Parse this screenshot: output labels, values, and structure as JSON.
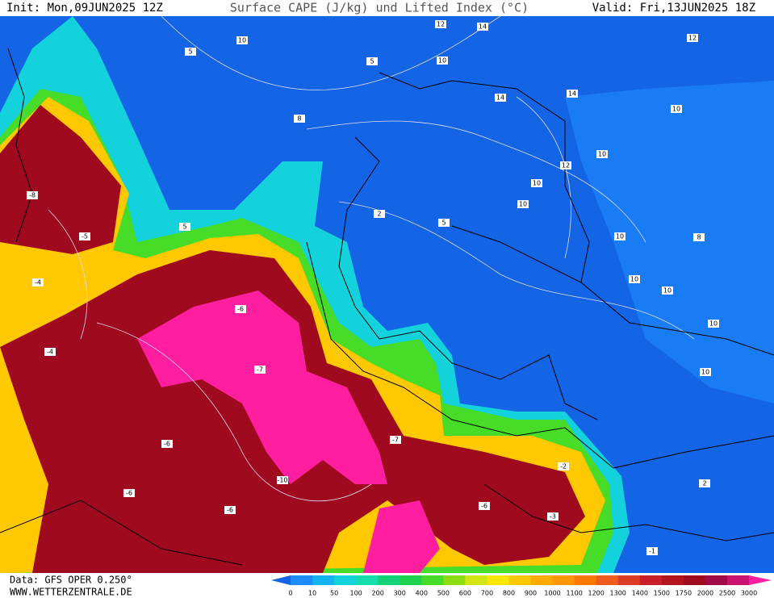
{
  "header": {
    "init": "Init: Mon,09JUN2025 12Z",
    "title": "Surface CAPE (J/kg) und Lifted Index (°C)",
    "valid": "Valid: Fri,13JUN2025 18Z"
  },
  "footer": {
    "data": "Data: GFS OPER 0.250°",
    "site": "WWW.WETTERZENTRALE.DE"
  },
  "colorbar": {
    "labels": [
      0,
      10,
      50,
      100,
      200,
      300,
      400,
      500,
      600,
      700,
      800,
      900,
      1000,
      1100,
      1200,
      1300,
      1400,
      1500,
      1750,
      2000,
      2500,
      3000
    ],
    "colors": [
      "#1464e6",
      "#1e8cff",
      "#14b4f0",
      "#14d2dc",
      "#14dcaa",
      "#14d278",
      "#1ed250",
      "#46dc28",
      "#8cdc14",
      "#d2e614",
      "#ffe600",
      "#ffc800",
      "#ffaa00",
      "#ff9600",
      "#ff7800",
      "#f05a1e",
      "#dc3c28",
      "#c81e28",
      "#b4141e",
      "#a00a1e",
      "#a00a46",
      "#c8146e",
      "#ff1ea0"
    ]
  },
  "map": {
    "contour_labels": [
      10,
      5,
      5,
      10,
      12,
      14,
      12,
      14,
      14,
      10,
      10,
      12,
      10,
      10,
      10,
      8,
      10,
      10,
      10,
      10,
      8,
      5,
      5,
      2,
      -4,
      -4,
      -5,
      -8,
      -6,
      -7,
      -10,
      -6,
      -7,
      -6,
      -3,
      -2,
      2,
      -1,
      -6,
      -6
    ]
  }
}
